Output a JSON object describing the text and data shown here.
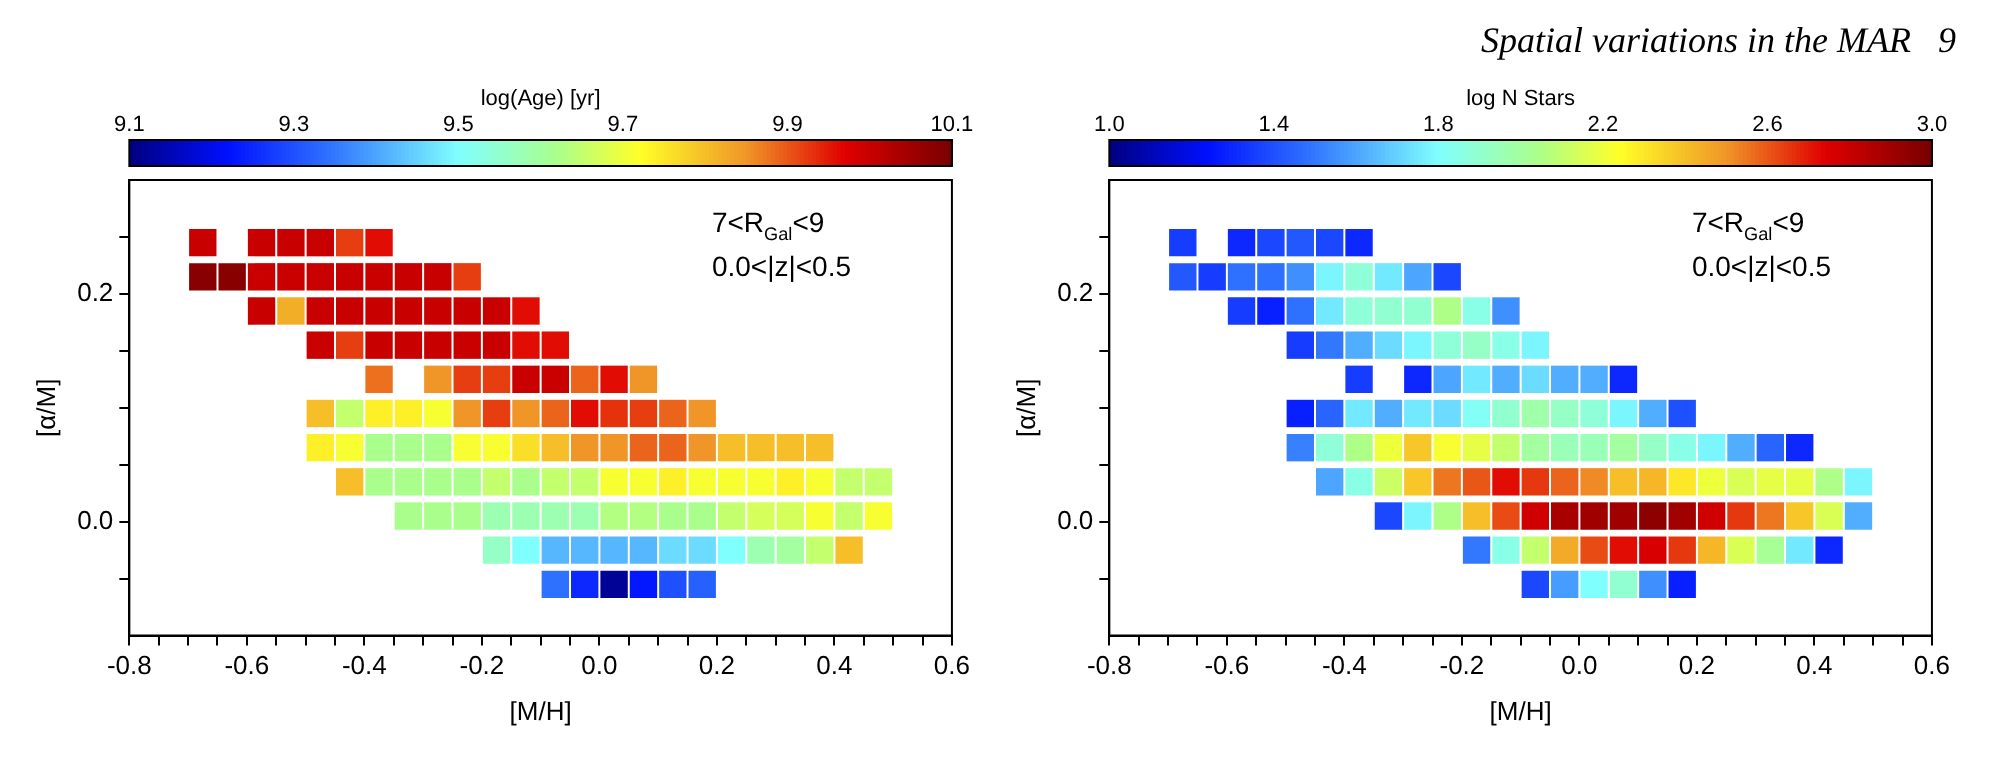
{
  "chart_data": [
    {
      "type": "scatter",
      "marker": "square",
      "xlabel": "[M/H]",
      "ylabel": "[α/M]",
      "clabel": "log(Age) [yr]",
      "clim": [
        9.1,
        10.1
      ],
      "cticks": [
        9.1,
        9.3,
        9.5,
        9.7,
        9.9,
        10.1
      ],
      "xlim": [
        -0.8,
        0.6
      ],
      "xticks": [
        -0.8,
        {
          "value": -0.75,
          "label": null
        },
        {
          "value": -0.7,
          "label": null
        },
        {
          "value": -0.65,
          "label": null
        },
        -0.6,
        {
          "value": -0.55,
          "label": null
        },
        {
          "value": -0.5,
          "label": null
        },
        {
          "value": -0.45,
          "label": null
        },
        -0.4,
        {
          "value": -0.35,
          "label": null
        },
        {
          "value": -0.3,
          "label": null
        },
        {
          "value": -0.25,
          "label": null
        },
        -0.2,
        {
          "value": -0.15,
          "label": null
        },
        {
          "value": -0.1,
          "label": null
        },
        {
          "value": -0.05,
          "label": null
        },
        {
          "value": 0,
          "label": "0.0"
        },
        {
          "value": 0.05,
          "label": null
        },
        {
          "value": 0.1,
          "label": null
        },
        {
          "value": 0.15,
          "label": null
        },
        0.2,
        {
          "value": 0.25,
          "label": null
        },
        {
          "value": 0.3,
          "label": null
        },
        {
          "value": 0.35,
          "label": null
        },
        0.4,
        {
          "value": 0.45,
          "label": null
        },
        {
          "value": 0.5,
          "label": null
        },
        {
          "value": 0.55,
          "label": null
        },
        0.6
      ],
      "ylim": [
        -0.1,
        0.3
      ],
      "yticks": [
        {
          "value": -0.05,
          "label": null
        },
        {
          "value": 0,
          "label": "0.0"
        },
        {
          "value": 0.05,
          "label": null
        },
        {
          "value": 0.1,
          "label": null
        },
        {
          "value": 0.15,
          "label": null
        },
        0.2,
        {
          "value": 0.25,
          "label": null
        }
      ],
      "annotations": [
        "7<R$_{Gal}$<9",
        "0.0<|z|<0.5"
      ],
      "x": [
        -0.675,
        -0.575,
        -0.525,
        -0.475,
        -0.425,
        -0.375,
        -0.675,
        -0.625,
        -0.575,
        -0.525,
        -0.475,
        -0.425,
        -0.375,
        -0.325,
        -0.275,
        -0.225,
        -0.575,
        -0.525,
        -0.475,
        -0.425,
        -0.375,
        -0.325,
        -0.275,
        -0.225,
        -0.175,
        -0.125,
        -0.475,
        -0.425,
        -0.375,
        -0.325,
        -0.275,
        -0.225,
        -0.175,
        -0.125,
        -0.075,
        -0.375,
        -0.275,
        -0.225,
        -0.175,
        -0.125,
        -0.075,
        -0.025,
        0.025,
        0.075,
        -0.475,
        -0.425,
        -0.375,
        -0.325,
        -0.275,
        -0.225,
        -0.175,
        -0.125,
        -0.075,
        -0.025,
        0.025,
        0.075,
        0.125,
        0.175,
        -0.475,
        -0.425,
        -0.375,
        -0.325,
        -0.275,
        -0.225,
        -0.175,
        -0.125,
        -0.075,
        -0.025,
        0.025,
        0.075,
        0.125,
        0.175,
        0.225,
        0.275,
        0.325,
        0.375,
        -0.425,
        -0.375,
        -0.325,
        -0.275,
        -0.225,
        -0.175,
        -0.125,
        -0.075,
        -0.025,
        0.025,
        0.075,
        0.125,
        0.175,
        0.225,
        0.275,
        0.325,
        0.375,
        0.425,
        0.475,
        -0.325,
        -0.275,
        -0.225,
        -0.175,
        -0.125,
        -0.075,
        -0.025,
        0.025,
        0.075,
        0.125,
        0.175,
        0.225,
        0.275,
        0.325,
        0.375,
        0.425,
        0.475,
        -0.175,
        -0.125,
        -0.075,
        -0.025,
        0.025,
        0.075,
        0.125,
        0.175,
        0.225,
        0.275,
        0.325,
        0.375,
        0.425,
        -0.075,
        -0.025,
        0.025,
        0.075,
        0.125,
        0.175
      ],
      "values": [
        0.245,
        0.245,
        0.245,
        0.245,
        0.245,
        0.245,
        0.215,
        0.215,
        0.215,
        0.215,
        0.215,
        0.215,
        0.215,
        0.215,
        0.215,
        0.215,
        0.185,
        0.185,
        0.185,
        0.185,
        0.185,
        0.185,
        0.185,
        0.185,
        0.185,
        0.185,
        0.155,
        0.155,
        0.155,
        0.155,
        0.155,
        0.155,
        0.155,
        0.155,
        0.155,
        0.125,
        0.125,
        0.125,
        0.125,
        0.125,
        0.125,
        0.125,
        0.125,
        0.125,
        0.095,
        0.095,
        0.095,
        0.095,
        0.095,
        0.095,
        0.095,
        0.095,
        0.095,
        0.095,
        0.095,
        0.095,
        0.095,
        0.095,
        0.065,
        0.065,
        0.065,
        0.065,
        0.065,
        0.065,
        0.065,
        0.065,
        0.065,
        0.065,
        0.065,
        0.065,
        0.065,
        0.065,
        0.065,
        0.065,
        0.065,
        0.065,
        0.035,
        0.035,
        0.035,
        0.035,
        0.035,
        0.035,
        0.035,
        0.035,
        0.035,
        0.035,
        0.035,
        0.035,
        0.035,
        0.035,
        0.035,
        0.035,
        0.035,
        0.035,
        0.035,
        0.005,
        0.005,
        0.005,
        0.005,
        0.005,
        0.005,
        0.005,
        0.005,
        0.005,
        0.005,
        0.005,
        0.005,
        0.005,
        0.005,
        0.005,
        0.005,
        0.005,
        -0.025,
        -0.025,
        -0.025,
        -0.025,
        -0.025,
        -0.025,
        -0.025,
        -0.025,
        -0.025,
        -0.025,
        -0.025,
        -0.025,
        -0.025,
        -0.055,
        -0.055,
        -0.055,
        -0.055,
        -0.055,
        -0.055
      ],
      "cvalues": [
        10.0,
        10.0,
        10.0,
        10.0,
        9.92,
        9.96,
        10.08,
        10.08,
        10.0,
        10.0,
        10.0,
        10.0,
        10.0,
        10.0,
        10.0,
        9.92,
        10.0,
        9.82,
        10.0,
        10.0,
        10.0,
        10.0,
        10.0,
        10.0,
        10.0,
        9.96,
        10.0,
        9.92,
        10.0,
        10.0,
        10.0,
        10.0,
        10.0,
        9.96,
        9.96,
        9.88,
        9.85,
        9.92,
        9.92,
        10.0,
        10.0,
        9.89,
        9.96,
        9.85,
        9.8,
        9.65,
        9.74,
        9.74,
        9.71,
        9.85,
        9.92,
        9.85,
        9.89,
        9.96,
        9.93,
        9.92,
        9.89,
        9.85,
        9.74,
        9.71,
        9.62,
        9.62,
        9.62,
        9.71,
        9.71,
        9.76,
        9.8,
        9.85,
        9.85,
        9.89,
        9.89,
        9.85,
        9.8,
        9.8,
        9.8,
        9.8,
        9.8,
        9.62,
        9.62,
        9.62,
        9.62,
        9.65,
        9.62,
        9.65,
        9.65,
        9.71,
        9.71,
        9.74,
        9.71,
        9.71,
        9.71,
        9.74,
        9.71,
        9.65,
        9.65,
        9.62,
        9.62,
        9.62,
        9.58,
        9.58,
        9.58,
        9.58,
        9.63,
        9.63,
        9.62,
        9.62,
        9.65,
        9.67,
        9.67,
        9.71,
        9.65,
        9.71,
        9.56,
        9.5,
        9.42,
        9.42,
        9.42,
        9.42,
        9.46,
        9.46,
        9.5,
        9.58,
        9.6,
        9.65,
        9.8,
        9.34,
        9.25,
        9.12,
        9.23,
        9.3,
        9.32
      ]
    },
    {
      "type": "scatter",
      "title": "Spatial variations in the MAR   9",
      "marker": "square",
      "xlabel": "[M/H]",
      "ylabel": "[α/M]",
      "clabel": "log N Stars",
      "clim": [
        1.0,
        3.0
      ],
      "cticks": [
        {
          "value": 1,
          "label": "1.0"
        },
        1.4,
        1.8,
        2.2,
        2.6,
        {
          "value": 3,
          "label": "3.0"
        }
      ],
      "xlim": [
        -0.8,
        0.6
      ],
      "xticks": [
        -0.8,
        {
          "value": -0.75,
          "label": null
        },
        {
          "value": -0.7,
          "label": null
        },
        {
          "value": -0.65,
          "label": null
        },
        -0.6,
        {
          "value": -0.55,
          "label": null
        },
        {
          "value": -0.5,
          "label": null
        },
        {
          "value": -0.45,
          "label": null
        },
        -0.4,
        {
          "value": -0.35,
          "label": null
        },
        {
          "value": -0.3,
          "label": null
        },
        {
          "value": -0.25,
          "label": null
        },
        -0.2,
        {
          "value": -0.15,
          "label": null
        },
        {
          "value": -0.1,
          "label": null
        },
        {
          "value": -0.05,
          "label": null
        },
        {
          "value": 0,
          "label": "0.0"
        },
        {
          "value": 0.05,
          "label": null
        },
        {
          "value": 0.1,
          "label": null
        },
        {
          "value": 0.15,
          "label": null
        },
        0.2,
        {
          "value": 0.25,
          "label": null
        },
        {
          "value": 0.3,
          "label": null
        },
        {
          "value": 0.35,
          "label": null
        },
        0.4,
        {
          "value": 0.45,
          "label": null
        },
        {
          "value": 0.5,
          "label": null
        },
        {
          "value": 0.55,
          "label": null
        },
        0.6
      ],
      "ylim": [
        -0.1,
        0.3
      ],
      "yticks": [
        {
          "value": -0.05,
          "label": null
        },
        {
          "value": 0,
          "label": "0.0"
        },
        {
          "value": 0.05,
          "label": null
        },
        {
          "value": 0.1,
          "label": null
        },
        {
          "value": 0.15,
          "label": null
        },
        0.2,
        {
          "value": 0.25,
          "label": null
        }
      ],
      "annotations": [
        "7<R$_{Gal}$<9",
        "0.0<|z|<0.5"
      ],
      "x": [
        -0.675,
        -0.575,
        -0.525,
        -0.475,
        -0.425,
        -0.375,
        -0.675,
        -0.625,
        -0.575,
        -0.525,
        -0.475,
        -0.425,
        -0.375,
        -0.325,
        -0.275,
        -0.225,
        -0.575,
        -0.525,
        -0.475,
        -0.425,
        -0.375,
        -0.325,
        -0.275,
        -0.225,
        -0.175,
        -0.125,
        -0.475,
        -0.425,
        -0.375,
        -0.325,
        -0.275,
        -0.225,
        -0.175,
        -0.125,
        -0.075,
        -0.375,
        -0.275,
        -0.225,
        -0.175,
        -0.125,
        -0.075,
        -0.025,
        0.025,
        0.075,
        -0.475,
        -0.425,
        -0.375,
        -0.325,
        -0.275,
        -0.225,
        -0.175,
        -0.125,
        -0.075,
        -0.025,
        0.025,
        0.075,
        0.125,
        0.175,
        -0.475,
        -0.425,
        -0.375,
        -0.325,
        -0.275,
        -0.225,
        -0.175,
        -0.125,
        -0.075,
        -0.025,
        0.025,
        0.075,
        0.125,
        0.175,
        0.225,
        0.275,
        0.325,
        0.375,
        -0.425,
        -0.375,
        -0.325,
        -0.275,
        -0.225,
        -0.175,
        -0.125,
        -0.075,
        -0.025,
        0.025,
        0.075,
        0.125,
        0.175,
        0.225,
        0.275,
        0.325,
        0.375,
        0.425,
        0.475,
        -0.325,
        -0.275,
        -0.225,
        -0.175,
        -0.125,
        -0.075,
        -0.025,
        0.025,
        0.075,
        0.125,
        0.175,
        0.225,
        0.275,
        0.325,
        0.375,
        0.425,
        0.475,
        -0.175,
        -0.125,
        -0.075,
        -0.025,
        0.025,
        0.075,
        0.125,
        0.175,
        0.225,
        0.275,
        0.325,
        0.375,
        0.425,
        -0.075,
        -0.025,
        0.025,
        0.075,
        0.125,
        0.175
      ],
      "values": [
        0.245,
        0.245,
        0.245,
        0.245,
        0.245,
        0.245,
        0.215,
        0.215,
        0.215,
        0.215,
        0.215,
        0.215,
        0.215,
        0.215,
        0.215,
        0.215,
        0.185,
        0.185,
        0.185,
        0.185,
        0.185,
        0.185,
        0.185,
        0.185,
        0.185,
        0.185,
        0.155,
        0.155,
        0.155,
        0.155,
        0.155,
        0.155,
        0.155,
        0.155,
        0.155,
        0.125,
        0.125,
        0.125,
        0.125,
        0.125,
        0.125,
        0.125,
        0.125,
        0.125,
        0.095,
        0.095,
        0.095,
        0.095,
        0.095,
        0.095,
        0.095,
        0.095,
        0.095,
        0.095,
        0.095,
        0.095,
        0.095,
        0.095,
        0.065,
        0.065,
        0.065,
        0.065,
        0.065,
        0.065,
        0.065,
        0.065,
        0.065,
        0.065,
        0.065,
        0.065,
        0.065,
        0.065,
        0.065,
        0.065,
        0.065,
        0.065,
        0.035,
        0.035,
        0.035,
        0.035,
        0.035,
        0.035,
        0.035,
        0.035,
        0.035,
        0.035,
        0.035,
        0.035,
        0.035,
        0.035,
        0.035,
        0.035,
        0.035,
        0.035,
        0.035,
        0.005,
        0.005,
        0.005,
        0.005,
        0.005,
        0.005,
        0.005,
        0.005,
        0.005,
        0.005,
        0.005,
        0.005,
        0.005,
        0.005,
        0.005,
        0.005,
        0.005,
        -0.025,
        -0.025,
        -0.025,
        -0.025,
        -0.025,
        -0.025,
        -0.025,
        -0.025,
        -0.025,
        -0.025,
        -0.025,
        -0.025,
        -0.025,
        -0.055,
        -0.055,
        -0.055,
        -0.055,
        -0.055,
        -0.055
      ],
      "cvalues": [
        1.35,
        1.3,
        1.38,
        1.42,
        1.38,
        1.3,
        1.42,
        1.35,
        1.48,
        1.48,
        1.55,
        1.78,
        1.88,
        1.75,
        1.6,
        1.38,
        1.35,
        1.28,
        1.48,
        1.75,
        1.88,
        1.9,
        1.9,
        2.05,
        1.85,
        1.55,
        1.35,
        1.5,
        1.62,
        1.72,
        1.78,
        1.88,
        1.92,
        1.85,
        1.78,
        1.35,
        1.3,
        1.6,
        1.75,
        1.62,
        1.72,
        1.62,
        1.62,
        1.3,
        1.28,
        1.45,
        1.75,
        1.62,
        1.75,
        1.72,
        1.82,
        1.9,
        1.98,
        1.92,
        1.88,
        1.78,
        1.62,
        1.4,
        1.52,
        1.88,
        2.05,
        2.2,
        2.38,
        2.22,
        2.18,
        2.1,
        2.0,
        1.95,
        1.95,
        2.0,
        1.92,
        1.85,
        1.78,
        1.62,
        1.45,
        1.3,
        1.6,
        1.85,
        2.12,
        2.38,
        2.55,
        2.6,
        2.72,
        2.65,
        2.58,
        2.52,
        2.4,
        2.42,
        2.3,
        2.2,
        2.15,
        2.18,
        2.18,
        2.05,
        1.78,
        1.38,
        1.78,
        2.05,
        2.4,
        2.62,
        2.78,
        2.88,
        2.9,
        2.9,
        2.95,
        2.9,
        2.78,
        2.65,
        2.55,
        2.38,
        2.15,
        1.62,
        1.5,
        1.85,
        2.1,
        2.45,
        2.62,
        2.72,
        2.76,
        2.65,
        2.42,
        2.15,
        2.02,
        1.75,
        1.3,
        1.38,
        1.58,
        1.8,
        1.9,
        1.55,
        1.28
      ]
    }
  ]
}
